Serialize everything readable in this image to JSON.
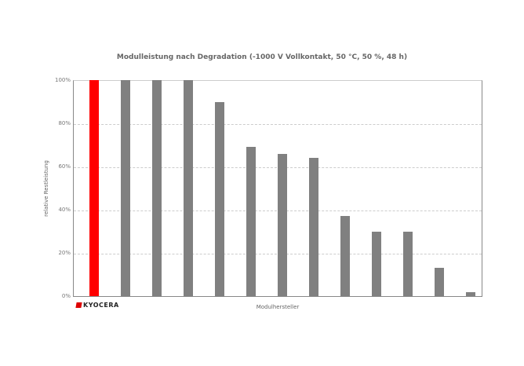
{
  "chart_data": {
    "type": "bar",
    "title": "Modulleistung nach Degradation (-1000 V Vollkontakt, 50 °C, 50 %, 48 h)",
    "xlabel": "Modulhersteller",
    "ylabel": "relative Restleistung",
    "ylim": [
      0,
      100
    ],
    "yticks": [
      "0%",
      "20%",
      "40%",
      "60%",
      "80%",
      "100%"
    ],
    "grid": true,
    "categories": [
      "Kyocera",
      "",
      "",
      "",
      "",
      "",
      "",
      "",
      "",
      "",
      "",
      "",
      ""
    ],
    "values": [
      100,
      100,
      100,
      100,
      90,
      69,
      66,
      64,
      37,
      30,
      30,
      13,
      2
    ],
    "colors": [
      "#ff0000",
      "#808080",
      "#808080",
      "#808080",
      "#808080",
      "#808080",
      "#808080",
      "#808080",
      "#808080",
      "#808080",
      "#808080",
      "#808080",
      "#808080"
    ]
  },
  "logo": {
    "text": "KYOCERA"
  }
}
